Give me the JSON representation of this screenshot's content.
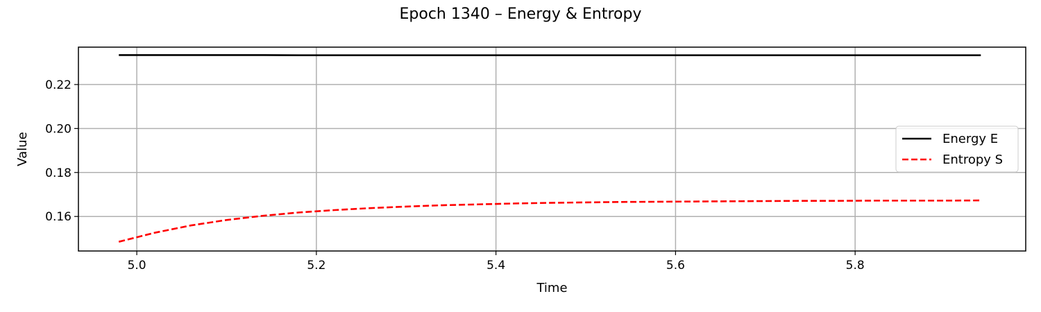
{
  "chart_data": {
    "type": "line",
    "title": "Epoch 1340 – Energy & Entropy",
    "xlabel": "Time",
    "ylabel": "Value",
    "xlim": [
      4.935,
      5.99
    ],
    "ylim": [
      0.1443,
      0.237
    ],
    "x_ticks": [
      5.0,
      5.2,
      5.4,
      5.6,
      5.8
    ],
    "x_tick_labels": [
      "5.0",
      "5.2",
      "5.4",
      "5.6",
      "5.8"
    ],
    "y_ticks": [
      0.16,
      0.18,
      0.2,
      0.22
    ],
    "y_tick_labels": [
      "0.16",
      "0.18",
      "0.20",
      "0.22"
    ],
    "grid": true,
    "legend_position": "center-right",
    "x": [
      4.98,
      5.02,
      5.06,
      5.1,
      5.14,
      5.18,
      5.22,
      5.26,
      5.3,
      5.34,
      5.38,
      5.42,
      5.46,
      5.5,
      5.54,
      5.58,
      5.62,
      5.66,
      5.7,
      5.74,
      5.78,
      5.82,
      5.86,
      5.9,
      5.94
    ],
    "series": [
      {
        "name": "Energy E",
        "color": "#000000",
        "style": "solid",
        "values": [
          0.2334,
          0.2334,
          0.2334,
          0.2334,
          0.2334,
          0.2333,
          0.2333,
          0.2333,
          0.2333,
          0.2333,
          0.2333,
          0.2333,
          0.2333,
          0.2333,
          0.2333,
          0.2333,
          0.2333,
          0.2333,
          0.2333,
          0.2333,
          0.2333,
          0.2333,
          0.2333,
          0.2333,
          0.2333
        ]
      },
      {
        "name": "Entropy S",
        "color": "#ff0000",
        "style": "dashed",
        "values": [
          0.1485,
          0.1526,
          0.1559,
          0.1584,
          0.1603,
          0.1618,
          0.1629,
          0.1638,
          0.1645,
          0.1651,
          0.1655,
          0.1659,
          0.1662,
          0.1664,
          0.1666,
          0.1667,
          0.1668,
          0.1669,
          0.167,
          0.1671,
          0.1671,
          0.1672,
          0.1672,
          0.1672,
          0.1673
        ]
      }
    ]
  }
}
